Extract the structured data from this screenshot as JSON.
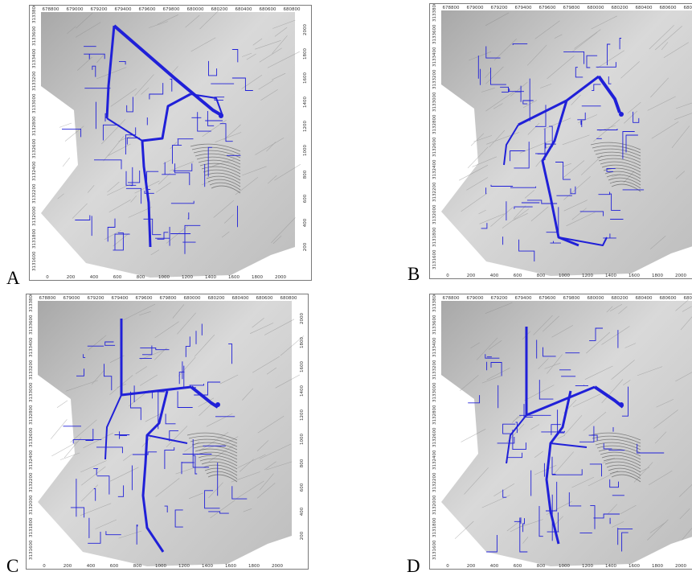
{
  "figure": {
    "panels": [
      {
        "letter": "A",
        "top_axis": [
          "678800",
          "679000",
          "679200",
          "679400",
          "679600",
          "679800",
          "680000",
          "680200",
          "680400",
          "680600",
          "680800"
        ],
        "bottom_axis": [
          "0",
          "200",
          "400",
          "600",
          "800",
          "1000",
          "1200",
          "1400",
          "1600",
          "1800",
          "2000"
        ],
        "left_axis": [
          "3131600",
          "3131800",
          "3132000",
          "3132200",
          "3132400",
          "3132600",
          "3132800",
          "3133000",
          "3133200",
          "3133400",
          "3133600",
          "3133800"
        ],
        "right_axis": [
          "2000",
          "1800",
          "1600",
          "1400",
          "1200",
          "1000",
          "800",
          "600",
          "400",
          "200"
        ]
      },
      {
        "letter": "B",
        "top_axis": [
          "678800",
          "679000",
          "679200",
          "679400",
          "679600",
          "679800",
          "680000",
          "680200",
          "680400",
          "680600",
          "680800"
        ],
        "bottom_axis": [
          "0",
          "200",
          "400",
          "600",
          "800",
          "1000",
          "1200",
          "1400",
          "1600",
          "1800",
          "2000"
        ],
        "left_axis": [
          "3131600",
          "3131800",
          "3132000",
          "3132200",
          "3132400",
          "3132600",
          "3132800",
          "3133000",
          "3133200",
          "3133400",
          "3133600",
          "3133800"
        ],
        "right_axis": [
          "2000",
          "1800",
          "1600",
          "1400",
          "1200",
          "1000",
          "800",
          "600",
          "400",
          "200"
        ]
      },
      {
        "letter": "C",
        "top_axis": [
          "678800",
          "679000",
          "679200",
          "679400",
          "679600",
          "679800",
          "680000",
          "680200",
          "680400",
          "680600",
          "680800"
        ],
        "bottom_axis": [
          "0",
          "200",
          "400",
          "600",
          "800",
          "1000",
          "1200",
          "1400",
          "1600",
          "1800",
          "2000"
        ],
        "left_axis": [
          "3131600",
          "3131800",
          "3132000",
          "3132200",
          "3132400",
          "3132600",
          "3132800",
          "3133000",
          "3133200",
          "3133400",
          "3133600",
          "3133800"
        ],
        "right_axis": [
          "2000",
          "1800",
          "1600",
          "1400",
          "1200",
          "1000",
          "800",
          "600",
          "400",
          "200"
        ]
      },
      {
        "letter": "D",
        "top_axis": [
          "678800",
          "679000",
          "679200",
          "679400",
          "679600",
          "679800",
          "680000",
          "680200",
          "680400",
          "680600",
          "680800"
        ],
        "bottom_axis": [
          "0",
          "200",
          "400",
          "600",
          "800",
          "1000",
          "1200",
          "1400",
          "1600",
          "1800",
          "2000"
        ],
        "left_axis": [
          "3131600",
          "3131800",
          "3132000",
          "3132200",
          "3132400",
          "3132600",
          "3132800",
          "3133000",
          "3133200",
          "3133400",
          "3133600",
          "3133800"
        ],
        "right_axis": [
          "2000",
          "1800",
          "1600",
          "1400",
          "1200",
          "1000",
          "800",
          "600",
          "400",
          "200"
        ]
      }
    ],
    "colors": {
      "network": "#2020d8",
      "terrain_light": "#d9d9d9",
      "terrain_dark": "#8a8a8a"
    }
  }
}
